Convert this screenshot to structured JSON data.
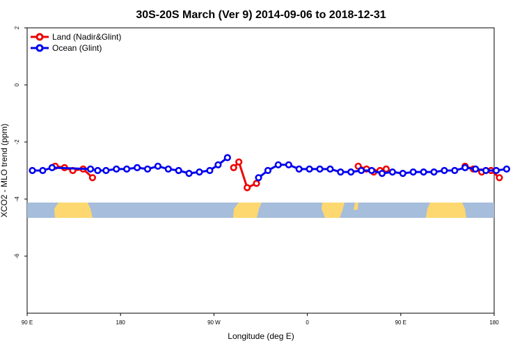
{
  "chart_data": {
    "type": "line",
    "title": "30S-20S March (Ver 9)   2014-09-06 to 2018-12-31",
    "xlabel": "Longitude (deg E)",
    "ylabel": "XCO2 - MLO trend (ppm)",
    "x_tick_labels": [
      "90 E",
      "180",
      "90 W",
      "0",
      "90 E",
      "180"
    ],
    "x_tick_values": [
      90,
      180,
      270,
      360,
      450,
      540
    ],
    "xlim": [
      90,
      540
    ],
    "y_ticks": [
      2,
      0,
      -2,
      -4,
      -6
    ],
    "ylim": [
      -8,
      2
    ],
    "legend_position": "top-left",
    "colors": {
      "land": "#ee0000",
      "ocean": "#0000ee",
      "map_ocean": "#a6bddb",
      "map_land": "#fdd870"
    },
    "series": [
      {
        "name": "Land (Nadir&Glint)",
        "color": "#ee0000",
        "segments": [
          [
            [
              117,
              -2.85
            ],
            [
              126,
              -2.9
            ],
            [
              134,
              -3.0
            ],
            [
              144,
              -2.95
            ],
            [
              153,
              -3.25
            ]
          ],
          [
            [
              289,
              -2.9
            ],
            [
              294,
              -2.7
            ],
            [
              302,
              -3.6
            ],
            [
              311,
              -3.45
            ]
          ],
          [
            [
              409,
              -2.85
            ],
            [
              417,
              -2.95
            ],
            [
              424,
              -3.05
            ],
            [
              430,
              -3.0
            ],
            [
              436,
              -2.95
            ]
          ],
          [
            [
              512,
              -2.85
            ],
            [
              520,
              -2.95
            ],
            [
              528,
              -3.05
            ],
            [
              537,
              -3.0
            ],
            [
              545,
              -3.25
            ]
          ]
        ]
      },
      {
        "name": "Ocean (Glint)",
        "color": "#0000ee",
        "segments": [
          [
            [
              95,
              -3.0
            ],
            [
              105,
              -3.0
            ],
            [
              114,
              -2.9
            ],
            [
              151,
              -2.95
            ],
            [
              158,
              -3.0
            ],
            [
              166,
              -3.0
            ],
            [
              176,
              -2.95
            ],
            [
              186,
              -2.95
            ],
            [
              196,
              -2.9
            ],
            [
              206,
              -2.95
            ],
            [
              216,
              -2.85
            ],
            [
              226,
              -2.95
            ],
            [
              236,
              -3.0
            ],
            [
              246,
              -3.1
            ],
            [
              256,
              -3.05
            ],
            [
              266,
              -3.0
            ],
            [
              274,
              -2.8
            ],
            [
              283,
              -2.55
            ]
          ],
          [
            [
              313,
              -3.25
            ],
            [
              322,
              -3.0
            ],
            [
              332,
              -2.8
            ],
            [
              342,
              -2.8
            ],
            [
              352,
              -2.95
            ],
            [
              362,
              -2.95
            ],
            [
              372,
              -2.95
            ],
            [
              382,
              -2.95
            ],
            [
              392,
              -3.05
            ],
            [
              402,
              -3.05
            ],
            [
              412,
              -3.0
            ],
            [
              422,
              -3.0
            ],
            [
              432,
              -3.1
            ],
            [
              442,
              -3.05
            ],
            [
              452,
              -3.1
            ],
            [
              462,
              -3.05
            ],
            [
              472,
              -3.05
            ],
            [
              482,
              -3.05
            ],
            [
              492,
              -3.0
            ],
            [
              502,
              -3.0
            ],
            [
              512,
              -2.9
            ],
            [
              522,
              -2.95
            ],
            [
              532,
              -3.0
            ],
            [
              542,
              -3.0
            ],
            [
              552,
              -2.95
            ]
          ]
        ]
      }
    ]
  }
}
